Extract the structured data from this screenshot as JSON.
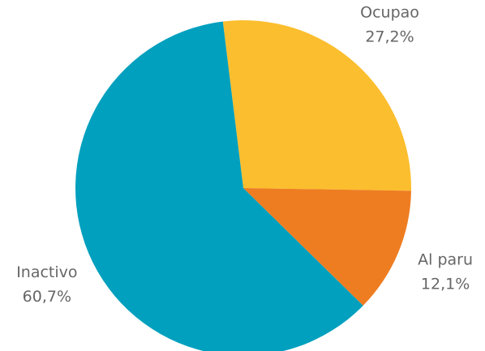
{
  "chart_data": {
    "type": "pie",
    "categories": [
      "Ocupao",
      "Al paru",
      "Inactivo"
    ],
    "values": [
      27.2,
      12.1,
      60.7
    ],
    "value_labels": [
      "27,2%",
      "12,1%",
      "60,7%"
    ],
    "colors": [
      "#fbbe2e",
      "#ee7d22",
      "#00a0be"
    ]
  }
}
